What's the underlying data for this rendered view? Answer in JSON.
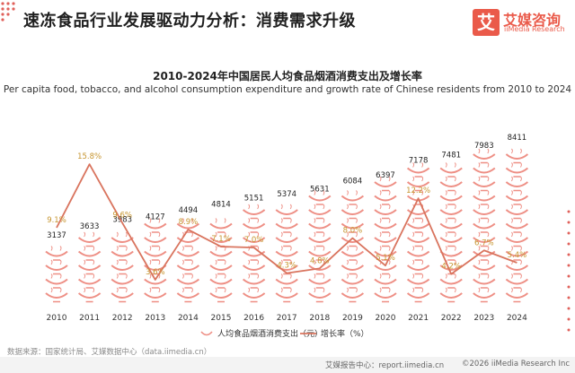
{
  "header": {
    "title": "速冻食品行业发展驱动力分析：消费需求升级",
    "logo_mark": "艾",
    "logo_cn": "艾媒咨询",
    "logo_en": "iiMedia Research"
  },
  "colors": {
    "accent": "#e0605a",
    "line": "#d9745e",
    "bowl": "#ee8f85",
    "bar_label": "#222222",
    "rate_label": "#c6952f"
  },
  "chart_data": {
    "type": "bar",
    "title": "2010-2024年中国居民人均食品烟酒消费支出及增长率",
    "subtitle": "Per capita food, tobacco, and alcohol consumption expenditure and growth rate of Chinese residents from 2010 to 2024",
    "categories": [
      "2010",
      "2011",
      "2012",
      "2013",
      "2014",
      "2015",
      "2016",
      "2017",
      "2018",
      "2019",
      "2020",
      "2021",
      "2022",
      "2023",
      "2024"
    ],
    "series": [
      {
        "name": "人均食品烟酒消费支出（元）",
        "type": "bar",
        "values": [
          3137,
          3633,
          3983,
          4127,
          4494,
          4814,
          5151,
          5374,
          5631,
          6084,
          6397,
          7178,
          7481,
          7983,
          8411
        ],
        "labels": [
          "3137",
          "3633",
          "3983",
          "4127",
          "4494",
          "4814",
          "5151",
          "5374",
          "5631",
          "6084",
          "6397",
          "7178",
          "7481",
          "7983",
          "8411"
        ]
      },
      {
        "name": "增长率（%）",
        "type": "line",
        "values": [
          9.1,
          15.8,
          9.6,
          3.6,
          8.9,
          7.1,
          7.0,
          4.3,
          4.8,
          8.0,
          5.1,
          12.2,
          4.2,
          6.7,
          5.4
        ],
        "labels": [
          "9.1%",
          "15.8%",
          "9.6%",
          "3.6%",
          "8.9%",
          "7.1%",
          "7.0%",
          "4.3%",
          "4.8%",
          "8.0%",
          "5.1%",
          "12.2%",
          "4.2%",
          "6.7%",
          "5.4%"
        ]
      }
    ],
    "ylim_left": [
      0,
      9000
    ],
    "ylim_right": [
      0,
      18
    ],
    "legend": "bottom-center",
    "grid": false
  },
  "footer": {
    "source": "数据来源：国家统计局、艾媒数据中心（data.iimedia.cn）",
    "url": "艾媒报告中心：report.iimedia.cn",
    "copyright": "©2026  iiMedia Research  Inc"
  }
}
